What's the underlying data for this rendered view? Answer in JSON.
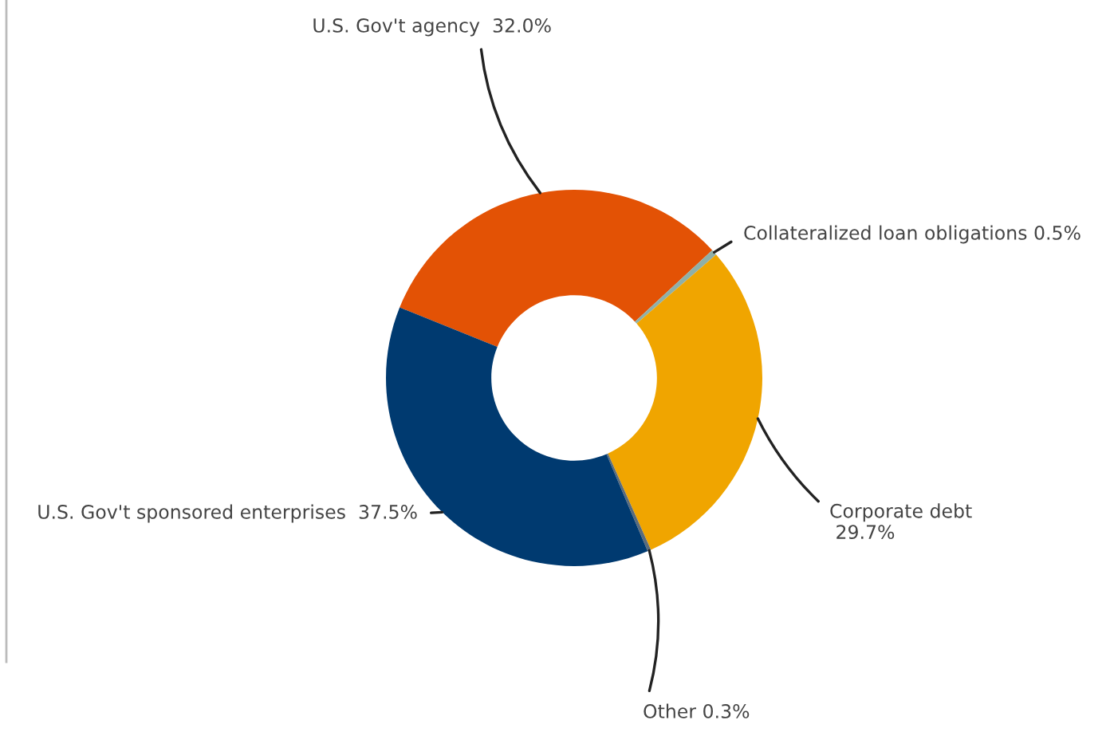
{
  "chart_data": {
    "type": "donut",
    "categories": [
      "U.S. Gov't agency",
      "Collateralized loan obligations",
      "Corporate debt",
      "Other",
      "U.S. Gov't sponsored enterprises"
    ],
    "values": [
      32.0,
      0.5,
      29.7,
      0.3,
      37.5
    ],
    "colors": [
      "#e35205",
      "#8fb0a8",
      "#f0a500",
      "#5a6b7b",
      "#003a70"
    ],
    "value_labels": [
      "32.0%",
      "0.5%",
      "29.7%",
      "0.3%",
      "37.5%"
    ]
  }
}
